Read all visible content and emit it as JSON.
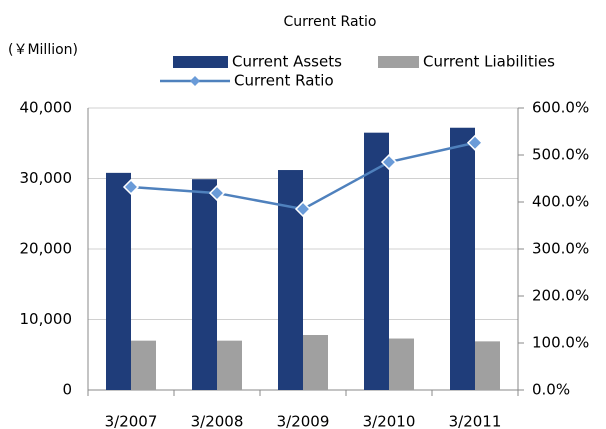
{
  "chart_data": {
    "type": "bar",
    "title": "Current Ratio",
    "y_label": "(￥Million)",
    "categories": [
      "3/2007",
      "3/2008",
      "3/2009",
      "3/2010",
      "3/2011"
    ],
    "series": [
      {
        "name": "Current Assets",
        "color": "#1f3d7a",
        "type": "bar",
        "values": [
          30800,
          29900,
          31200,
          36500,
          37200
        ]
      },
      {
        "name": "Current Liabilities",
        "color": "#a0a0a0",
        "type": "bar",
        "values": [
          7000,
          7000,
          7800,
          7300,
          6900
        ]
      },
      {
        "name": "Current Ratio",
        "color": "#4f81bd",
        "type": "line",
        "axis": "y2",
        "values": [
          432,
          419,
          385,
          485,
          526
        ]
      }
    ],
    "ylim": [
      0,
      40000
    ],
    "yticks": [
      0,
      {
        "value": 10000,
        "label": "10,000"
      },
      {
        "value": 20000,
        "label": "20,000"
      },
      {
        "value": 30000,
        "label": "30,000"
      },
      {
        "value": 40000,
        "label": "40,000"
      }
    ],
    "y2lim": [
      0,
      600
    ],
    "y2ticks": [
      {
        "value": 0,
        "label": "0.0%"
      },
      {
        "value": 100,
        "label": "100.0%"
      },
      {
        "value": 200,
        "label": "200.0%"
      },
      {
        "value": 300,
        "label": "300.0%"
      },
      {
        "value": 400,
        "label": "400.0%"
      },
      {
        "value": 500,
        "label": "500.0%"
      },
      {
        "value": 600,
        "label": "600.0%"
      }
    ],
    "grid": true
  }
}
